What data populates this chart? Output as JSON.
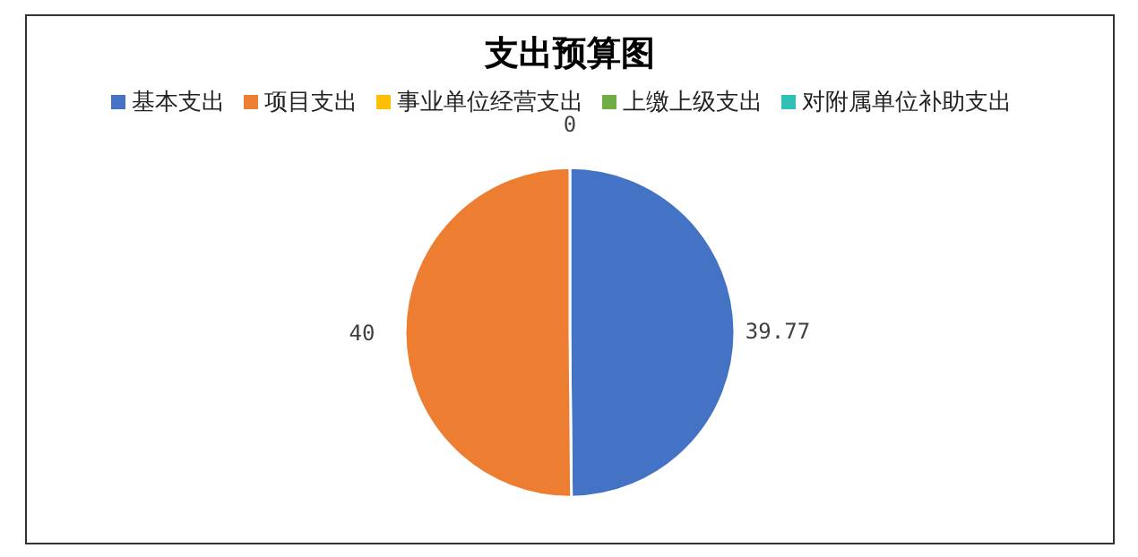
{
  "chart_data": {
    "type": "pie",
    "title": "支出预算图",
    "categories": [
      "基本支出",
      "项目支出",
      "事业单位经营支出",
      "上缴上级支出",
      "对附属单位补助支出"
    ],
    "values": [
      39.77,
      40,
      0,
      0,
      0
    ],
    "colors": [
      "#4472c4",
      "#ed7d31",
      "#ffc000",
      "#70ad47",
      "#2fc1b5"
    ],
    "value_labels": [
      "39.77",
      "40",
      "0",
      null,
      null
    ],
    "legend": "top"
  }
}
